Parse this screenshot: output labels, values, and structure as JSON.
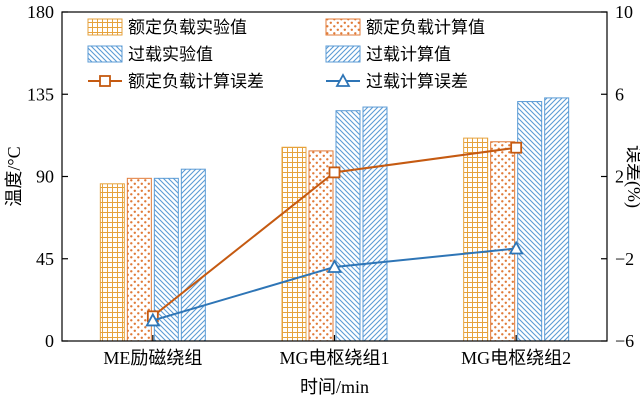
{
  "chart_data": {
    "type": "bar",
    "subtype": "bar+line-combo",
    "categories": [
      "ME励磁绕组",
      "MG电枢绕组1",
      "MG电枢绕组2"
    ],
    "bar_series": [
      {
        "name": "额定负载实验值",
        "pattern": "grid",
        "color": "#E6A23C",
        "axis": "left",
        "values": [
          86,
          106,
          111
        ]
      },
      {
        "name": "额定负载计算值",
        "pattern": "dots",
        "color": "#E07B39",
        "axis": "left",
        "values": [
          89,
          104,
          109
        ]
      },
      {
        "name": "过载实验值",
        "pattern": "diag-down",
        "color": "#5B9BD5",
        "axis": "left",
        "values": [
          89,
          126,
          131
        ]
      },
      {
        "name": "过载计算值",
        "pattern": "diag-up",
        "color": "#5B9BD5",
        "axis": "left",
        "values": [
          94,
          128,
          133
        ]
      }
    ],
    "line_series": [
      {
        "name": "额定负载计算误差",
        "marker": "square",
        "color": "#C55A11",
        "axis": "right",
        "values": [
          -4.8,
          2.2,
          3.4
        ]
      },
      {
        "name": "过载计算误差",
        "marker": "triangle",
        "color": "#2E75B6",
        "axis": "right",
        "values": [
          -5.0,
          -2.4,
          -1.5
        ]
      }
    ],
    "left_axis": {
      "label": "温度/°C",
      "min": 0,
      "max": 180,
      "ticks": [
        0,
        45,
        90,
        135,
        180
      ]
    },
    "right_axis": {
      "label": "误差(%)",
      "min": -6,
      "max": 10,
      "ticks": [
        -6,
        -2,
        2,
        6,
        10
      ]
    },
    "x_axis": {
      "label": "时间/min"
    },
    "legend_position": "top-inside",
    "grid": false,
    "title": ""
  }
}
